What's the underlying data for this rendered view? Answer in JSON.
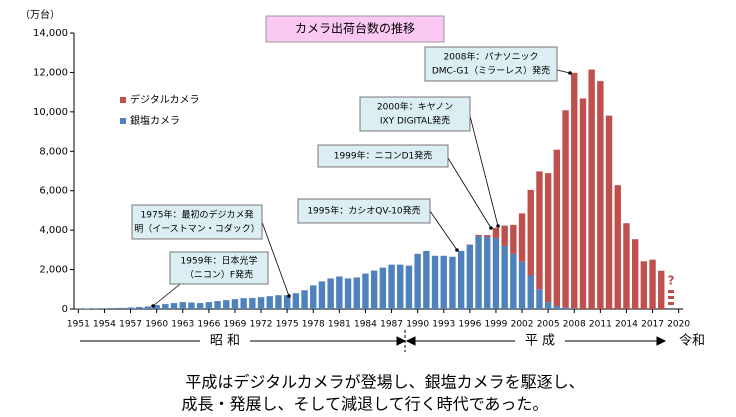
{
  "chart_data": {
    "type": "stacked_bar",
    "title": "カメラ出荷台数の推移",
    "y_unit_label": "（万台）",
    "x": [
      1951,
      1952,
      1953,
      1954,
      1955,
      1956,
      1957,
      1958,
      1959,
      1960,
      1961,
      1962,
      1963,
      1964,
      1965,
      1966,
      1967,
      1968,
      1969,
      1970,
      1971,
      1972,
      1973,
      1974,
      1975,
      1976,
      1977,
      1978,
      1979,
      1980,
      1981,
      1982,
      1983,
      1984,
      1985,
      1986,
      1987,
      1988,
      1989,
      1990,
      1991,
      1992,
      1993,
      1994,
      1995,
      1996,
      1997,
      1998,
      1999,
      2000,
      2001,
      2002,
      2003,
      2004,
      2005,
      2006,
      2007,
      2008,
      2009,
      2010,
      2011,
      2012,
      2013,
      2014,
      2015,
      2016,
      2017,
      2018
    ],
    "series": [
      {
        "name": "銀塩カメラ",
        "color": "#4f81bd",
        "values": [
          20,
          25,
          30,
          35,
          45,
          55,
          80,
          100,
          130,
          200,
          250,
          300,
          350,
          330,
          300,
          350,
          400,
          450,
          500,
          550,
          560,
          600,
          650,
          700,
          700,
          800,
          950,
          1200,
          1400,
          1550,
          1650,
          1550,
          1600,
          1800,
          1950,
          2100,
          2250,
          2250,
          2200,
          2800,
          2950,
          2700,
          2700,
          2650,
          2950,
          3250,
          3700,
          3650,
          3600,
          3200,
          2800,
          2400,
          1700,
          1000,
          350,
          150,
          80,
          30,
          0,
          0,
          0,
          0,
          0,
          0,
          0,
          0,
          0,
          0
        ]
      },
      {
        "name": "デジタルカメラ",
        "color": "#c0504d",
        "values": [
          0,
          0,
          0,
          0,
          0,
          0,
          0,
          0,
          0,
          0,
          0,
          0,
          0,
          0,
          0,
          0,
          0,
          0,
          0,
          0,
          0,
          0,
          0,
          0,
          0,
          0,
          0,
          0,
          0,
          0,
          0,
          0,
          0,
          0,
          0,
          0,
          0,
          0,
          0,
          0,
          0,
          0,
          0,
          0,
          0,
          20,
          60,
          100,
          510,
          1030,
          1470,
          2450,
          4340,
          5980,
          6540,
          7930,
          10000,
          11950,
          10680,
          12150,
          11560,
          9810,
          6280,
          4350,
          3540,
          2420,
          2500,
          1940
        ]
      }
    ],
    "xlim": [
      1950.5,
      2020.5
    ],
    "xticks": [
      1951,
      1954,
      1957,
      1960,
      1963,
      1966,
      1969,
      1972,
      1975,
      1978,
      1981,
      1984,
      1987,
      1990,
      1993,
      1996,
      1999,
      2002,
      2005,
      2008,
      2011,
      2014,
      2017,
      2020
    ],
    "ylim": [
      0,
      14000
    ],
    "yticks": [
      0,
      {
        "value": 2000,
        "label": "2,000"
      },
      {
        "value": 4000,
        "label": "4,000"
      },
      {
        "value": 6000,
        "label": "6,000"
      },
      {
        "value": 8000,
        "label": "8,000"
      },
      {
        "value": 10000,
        "label": "10,000"
      },
      {
        "value": 12000,
        "label": "12,000"
      },
      {
        "value": 14000,
        "label": "14,000"
      }
    ],
    "pending_label": "?",
    "annotations": [
      {
        "lines": [
          "2008年：パナソニック",
          "DMC-G1（ミラーレス）発売"
        ]
      },
      {
        "lines": [
          "2000年：キヤノン",
          "IXY DIGITAL発売"
        ]
      },
      {
        "lines": [
          "1999年：ニコンD1発売"
        ]
      },
      {
        "lines": [
          "1995年：カシオQV-10発売"
        ]
      },
      {
        "lines": [
          "1975年：最初のデジカメ発",
          "明（イーストマン・コダック）"
        ]
      },
      {
        "lines": [
          "1959年：日本光学",
          "（ニコン）F発売"
        ]
      }
    ],
    "eras": [
      "昭 和",
      "平 成",
      "令和"
    ],
    "caption": [
      "平成はデジタルカメラが登場し、銀塩カメラを駆逐し、",
      "成長・発展し、そして減退して行く時代であった。"
    ]
  }
}
